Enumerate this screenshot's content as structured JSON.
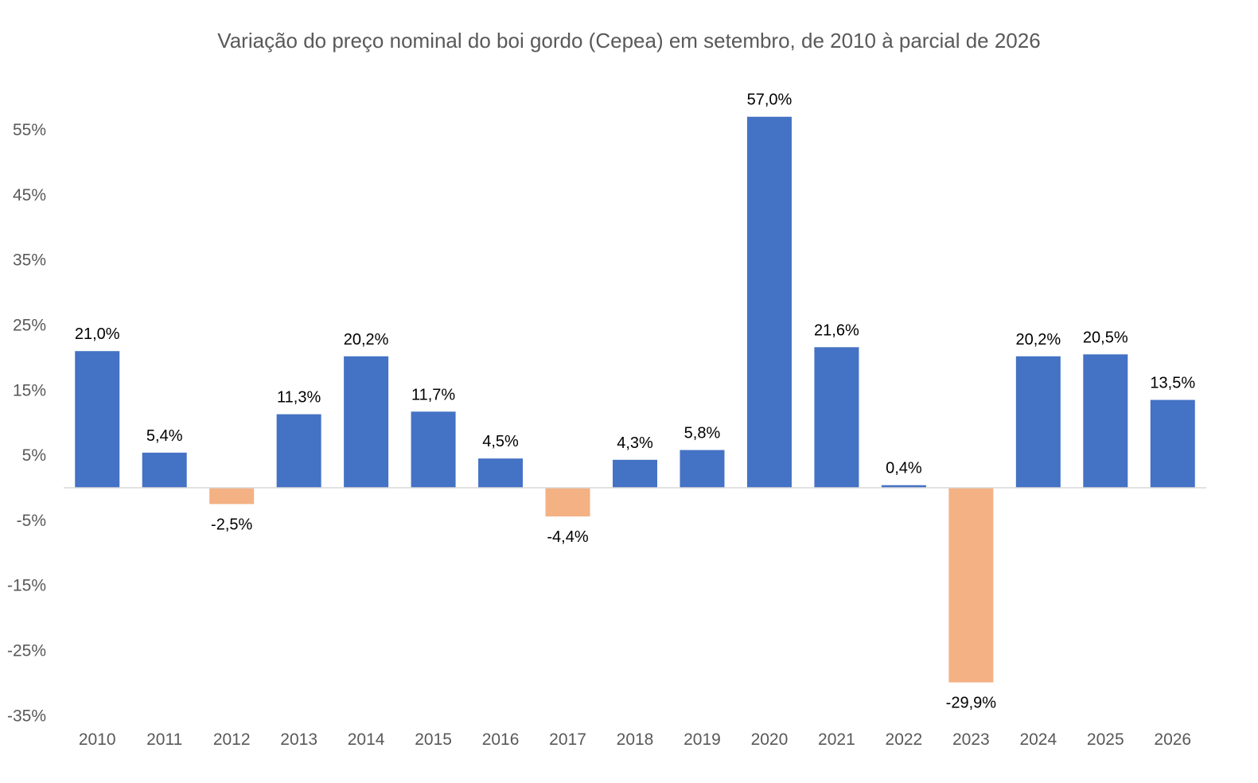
{
  "chart_data": {
    "type": "bar",
    "title": "Variação do preço nominal do boi gordo (Cepea) em setembro, de 2010 à parcial de 2026",
    "xlabel": "",
    "ylabel": "",
    "categories": [
      "2010",
      "2011",
      "2012",
      "2013",
      "2014",
      "2015",
      "2016",
      "2017",
      "2018",
      "2019",
      "2020",
      "2021",
      "2022",
      "2023",
      "2024",
      "2025",
      "2026"
    ],
    "values": [
      21.0,
      5.4,
      -2.5,
      11.3,
      20.2,
      11.7,
      4.5,
      -4.4,
      4.3,
      5.8,
      57.0,
      21.6,
      0.4,
      -29.9,
      20.2,
      20.5,
      13.5
    ],
    "data_labels": [
      "21,0%",
      "5,4%",
      "-2,5%",
      "11,3%",
      "20,2%",
      "11,7%",
      "4,5%",
      "-4,4%",
      "4,3%",
      "5,8%",
      "57,0%",
      "21,6%",
      "0,4%",
      "-29,9%",
      "20,2%",
      "20,5%",
      "13,5%"
    ],
    "y_ticks": [
      55,
      45,
      35,
      25,
      15,
      5,
      -5,
      -15,
      -25,
      -35
    ],
    "y_tick_labels": [
      "55%",
      "45%",
      "35%",
      "25%",
      "15%",
      "5%",
      "-5%",
      "-15%",
      "-25%",
      "-35%"
    ],
    "ylim": [
      -36,
      60
    ],
    "grid": false,
    "legend": "none",
    "colors": {
      "positive": "#4472C4",
      "negative": "#F4B183",
      "axis": "#D9D9D9",
      "text": "#595959",
      "label": "#000000"
    }
  }
}
